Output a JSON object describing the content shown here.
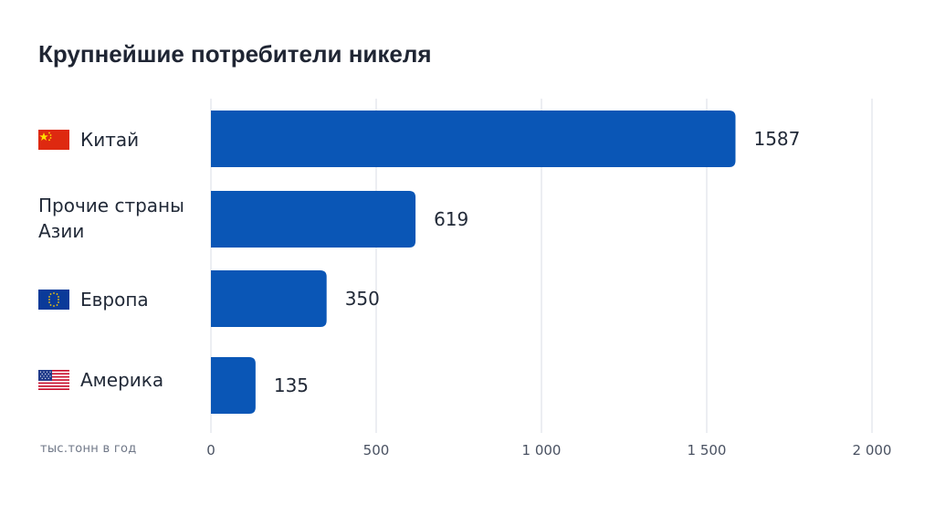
{
  "colors": {
    "bar": "#0a56b6",
    "grid": "#d9dde6",
    "axis_text": "#4a5262"
  },
  "chart_data": {
    "type": "bar",
    "orientation": "horizontal",
    "title": "Крупнейшие потребители никеля",
    "unit_label": "тыс.тонн в год",
    "categories": [
      "Китай",
      "Прочие страны\nАзии",
      "Европа",
      "Америка"
    ],
    "flag_icons": [
      "china-flag-icon",
      "",
      "eu-flag-icon",
      "usa-flag-icon"
    ],
    "values": [
      1587,
      619,
      350,
      135
    ],
    "value_labels": [
      "1587",
      "619",
      "350",
      "135"
    ],
    "xlim": [
      0,
      2000
    ],
    "ticks": [
      0,
      500,
      1000,
      1500,
      2000
    ],
    "tick_labels": [
      "0",
      "500",
      "1 000",
      "1 500",
      "2 000"
    ],
    "grid": true
  }
}
